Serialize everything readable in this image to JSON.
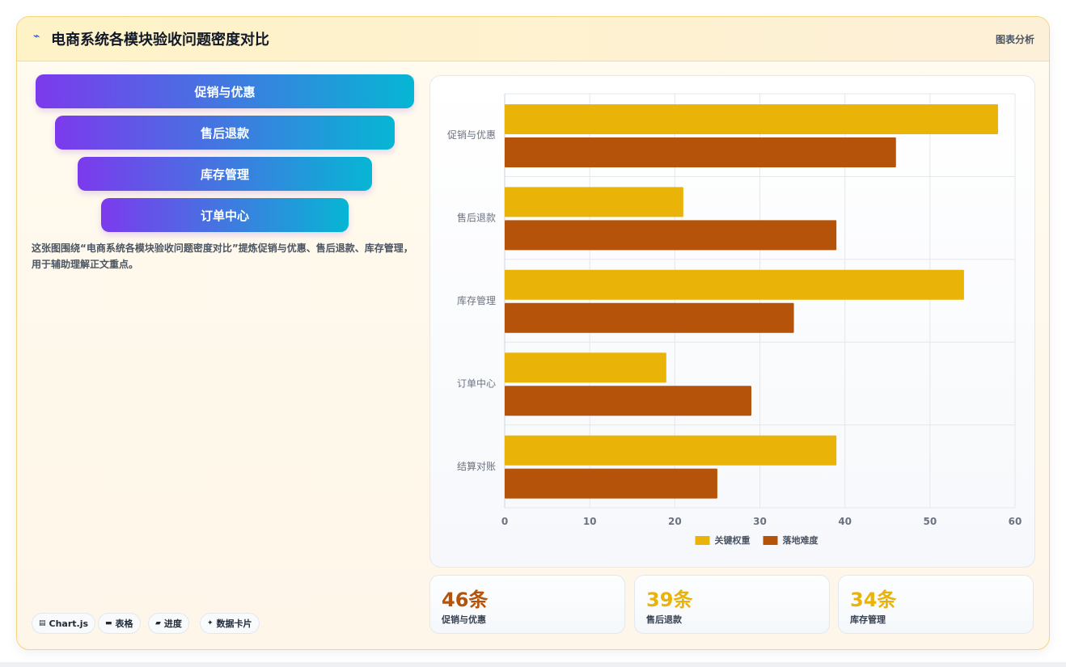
{
  "header": {
    "icon": "line-chart-icon",
    "title": "电商系统各模块验收问题密度对比",
    "badge": "图表分析"
  },
  "funnel": {
    "steps": [
      "促销与优惠",
      "售后退款",
      "库存管理",
      "订单中心"
    ]
  },
  "description": "这张图围绕“电商系统各模块验收问题密度对比”提炼促销与优惠、售后退款、库存管理，用于辅助理解正文重点。",
  "tags": [
    {
      "icon": "chart-icon",
      "label": "Chart.js"
    },
    {
      "icon": "table-icon",
      "label": "表格"
    },
    {
      "icon": "progress-icon",
      "label": "进度"
    },
    {
      "icon": "sparkle-icon",
      "label": "数据卡片"
    }
  ],
  "stats": [
    {
      "value": "46条",
      "label": "促销与优惠",
      "color": "#b45309"
    },
    {
      "value": "39条",
      "label": "售后退款",
      "color": "#eab308"
    },
    {
      "value": "34条",
      "label": "库存管理",
      "color": "#eab308"
    }
  ],
  "chart_data": {
    "type": "bar",
    "orientation": "horizontal",
    "categories": [
      "促销与优惠",
      "售后退款",
      "库存管理",
      "订单中心",
      "结算对账"
    ],
    "series": [
      {
        "name": "关键权重",
        "values": [
          58,
          21,
          54,
          19,
          39
        ],
        "color": "#eab308"
      },
      {
        "name": "落地难度",
        "values": [
          46,
          39,
          34,
          29,
          25
        ],
        "color": "#b45309"
      }
    ],
    "xlim": [
      0,
      60
    ],
    "xticks": [
      0,
      10,
      20,
      30,
      40,
      50,
      60
    ],
    "grid": true,
    "legend": "bottom"
  }
}
